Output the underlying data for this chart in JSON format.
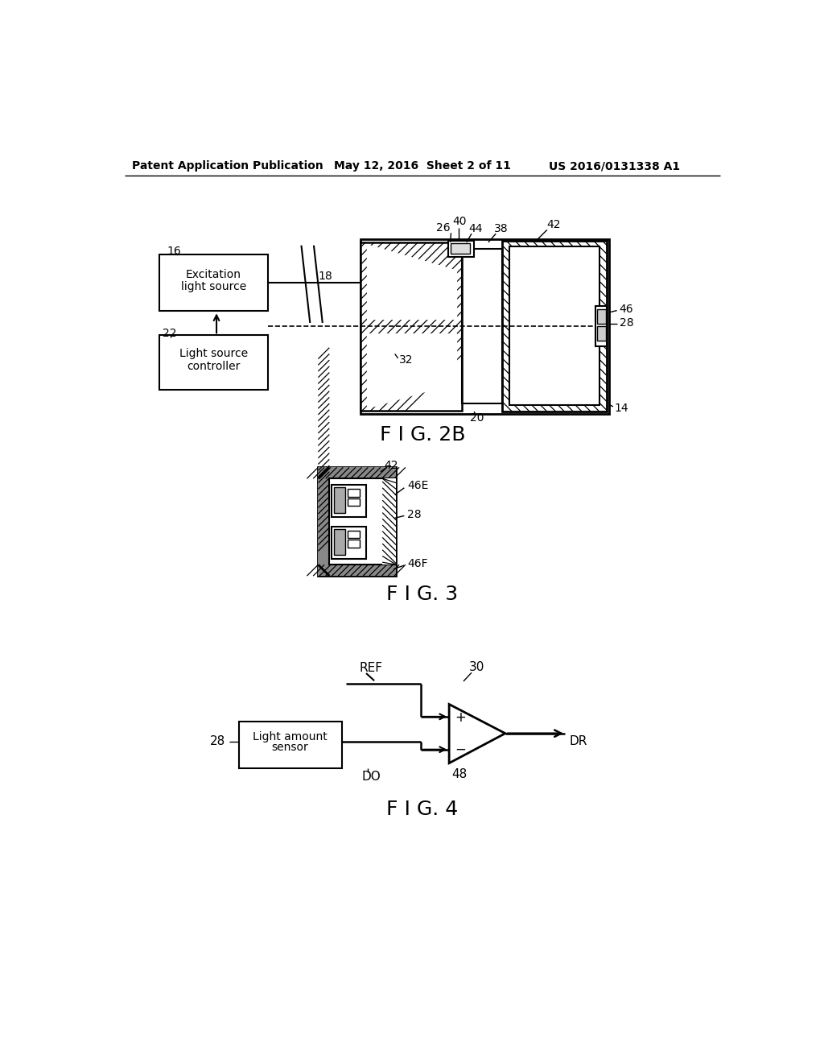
{
  "bg_color": "#ffffff",
  "fig2b_label": "F I G. 2B",
  "fig3_label": "F I G. 3",
  "fig4_label": "F I G. 4",
  "header_left": "Patent Application Publication",
  "header_mid": "May 12, 2016  Sheet 2 of 11",
  "header_right": "US 2016/0131338 A1"
}
